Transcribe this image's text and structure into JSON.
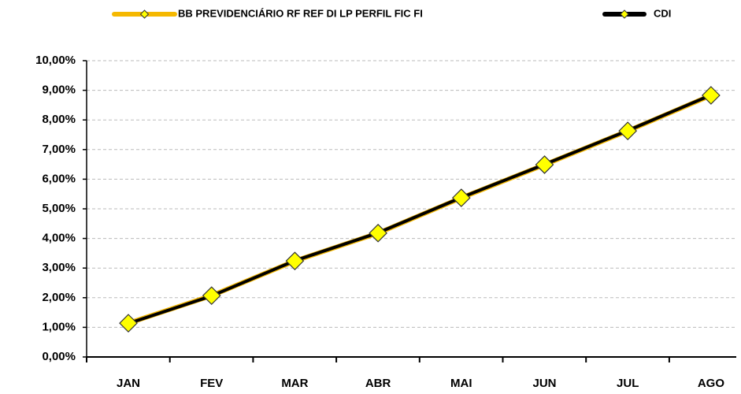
{
  "chart_data": {
    "type": "line",
    "categories": [
      "JAN",
      "FEV",
      "MAR",
      "ABR",
      "MAI",
      "JUN",
      "JUL",
      "AGO"
    ],
    "series": [
      {
        "name": "BB PREVIDENCIÁRIO RF REF DI LP PERFIL FIC FI",
        "color": "#f5b800",
        "values": [
          1.14,
          2.07,
          3.24,
          4.18,
          5.37,
          6.49,
          7.63,
          8.83
        ]
      },
      {
        "name": "CDI",
        "color": "#000000",
        "values": [
          1.13,
          2.06,
          3.25,
          4.19,
          5.38,
          6.5,
          7.64,
          8.84
        ]
      }
    ],
    "marker_color": "#ffff00",
    "ylim": [
      0,
      10
    ],
    "yticks": [
      {
        "value": 0,
        "label": "0,00%"
      },
      {
        "value": 1,
        "label": "1,00%"
      },
      {
        "value": 2,
        "label": "2,00%"
      },
      {
        "value": 3,
        "label": "3,00%"
      },
      {
        "value": 4,
        "label": "4,00%"
      },
      {
        "value": 5,
        "label": "5,00%"
      },
      {
        "value": 6,
        "label": "6,00%"
      },
      {
        "value": 7,
        "label": "7,00%"
      },
      {
        "value": 8,
        "label": "8,00%"
      },
      {
        "value": 9,
        "label": "9,00%"
      },
      {
        "value": 10,
        "label": "10,00%"
      }
    ],
    "grid": true,
    "legend": "top"
  }
}
